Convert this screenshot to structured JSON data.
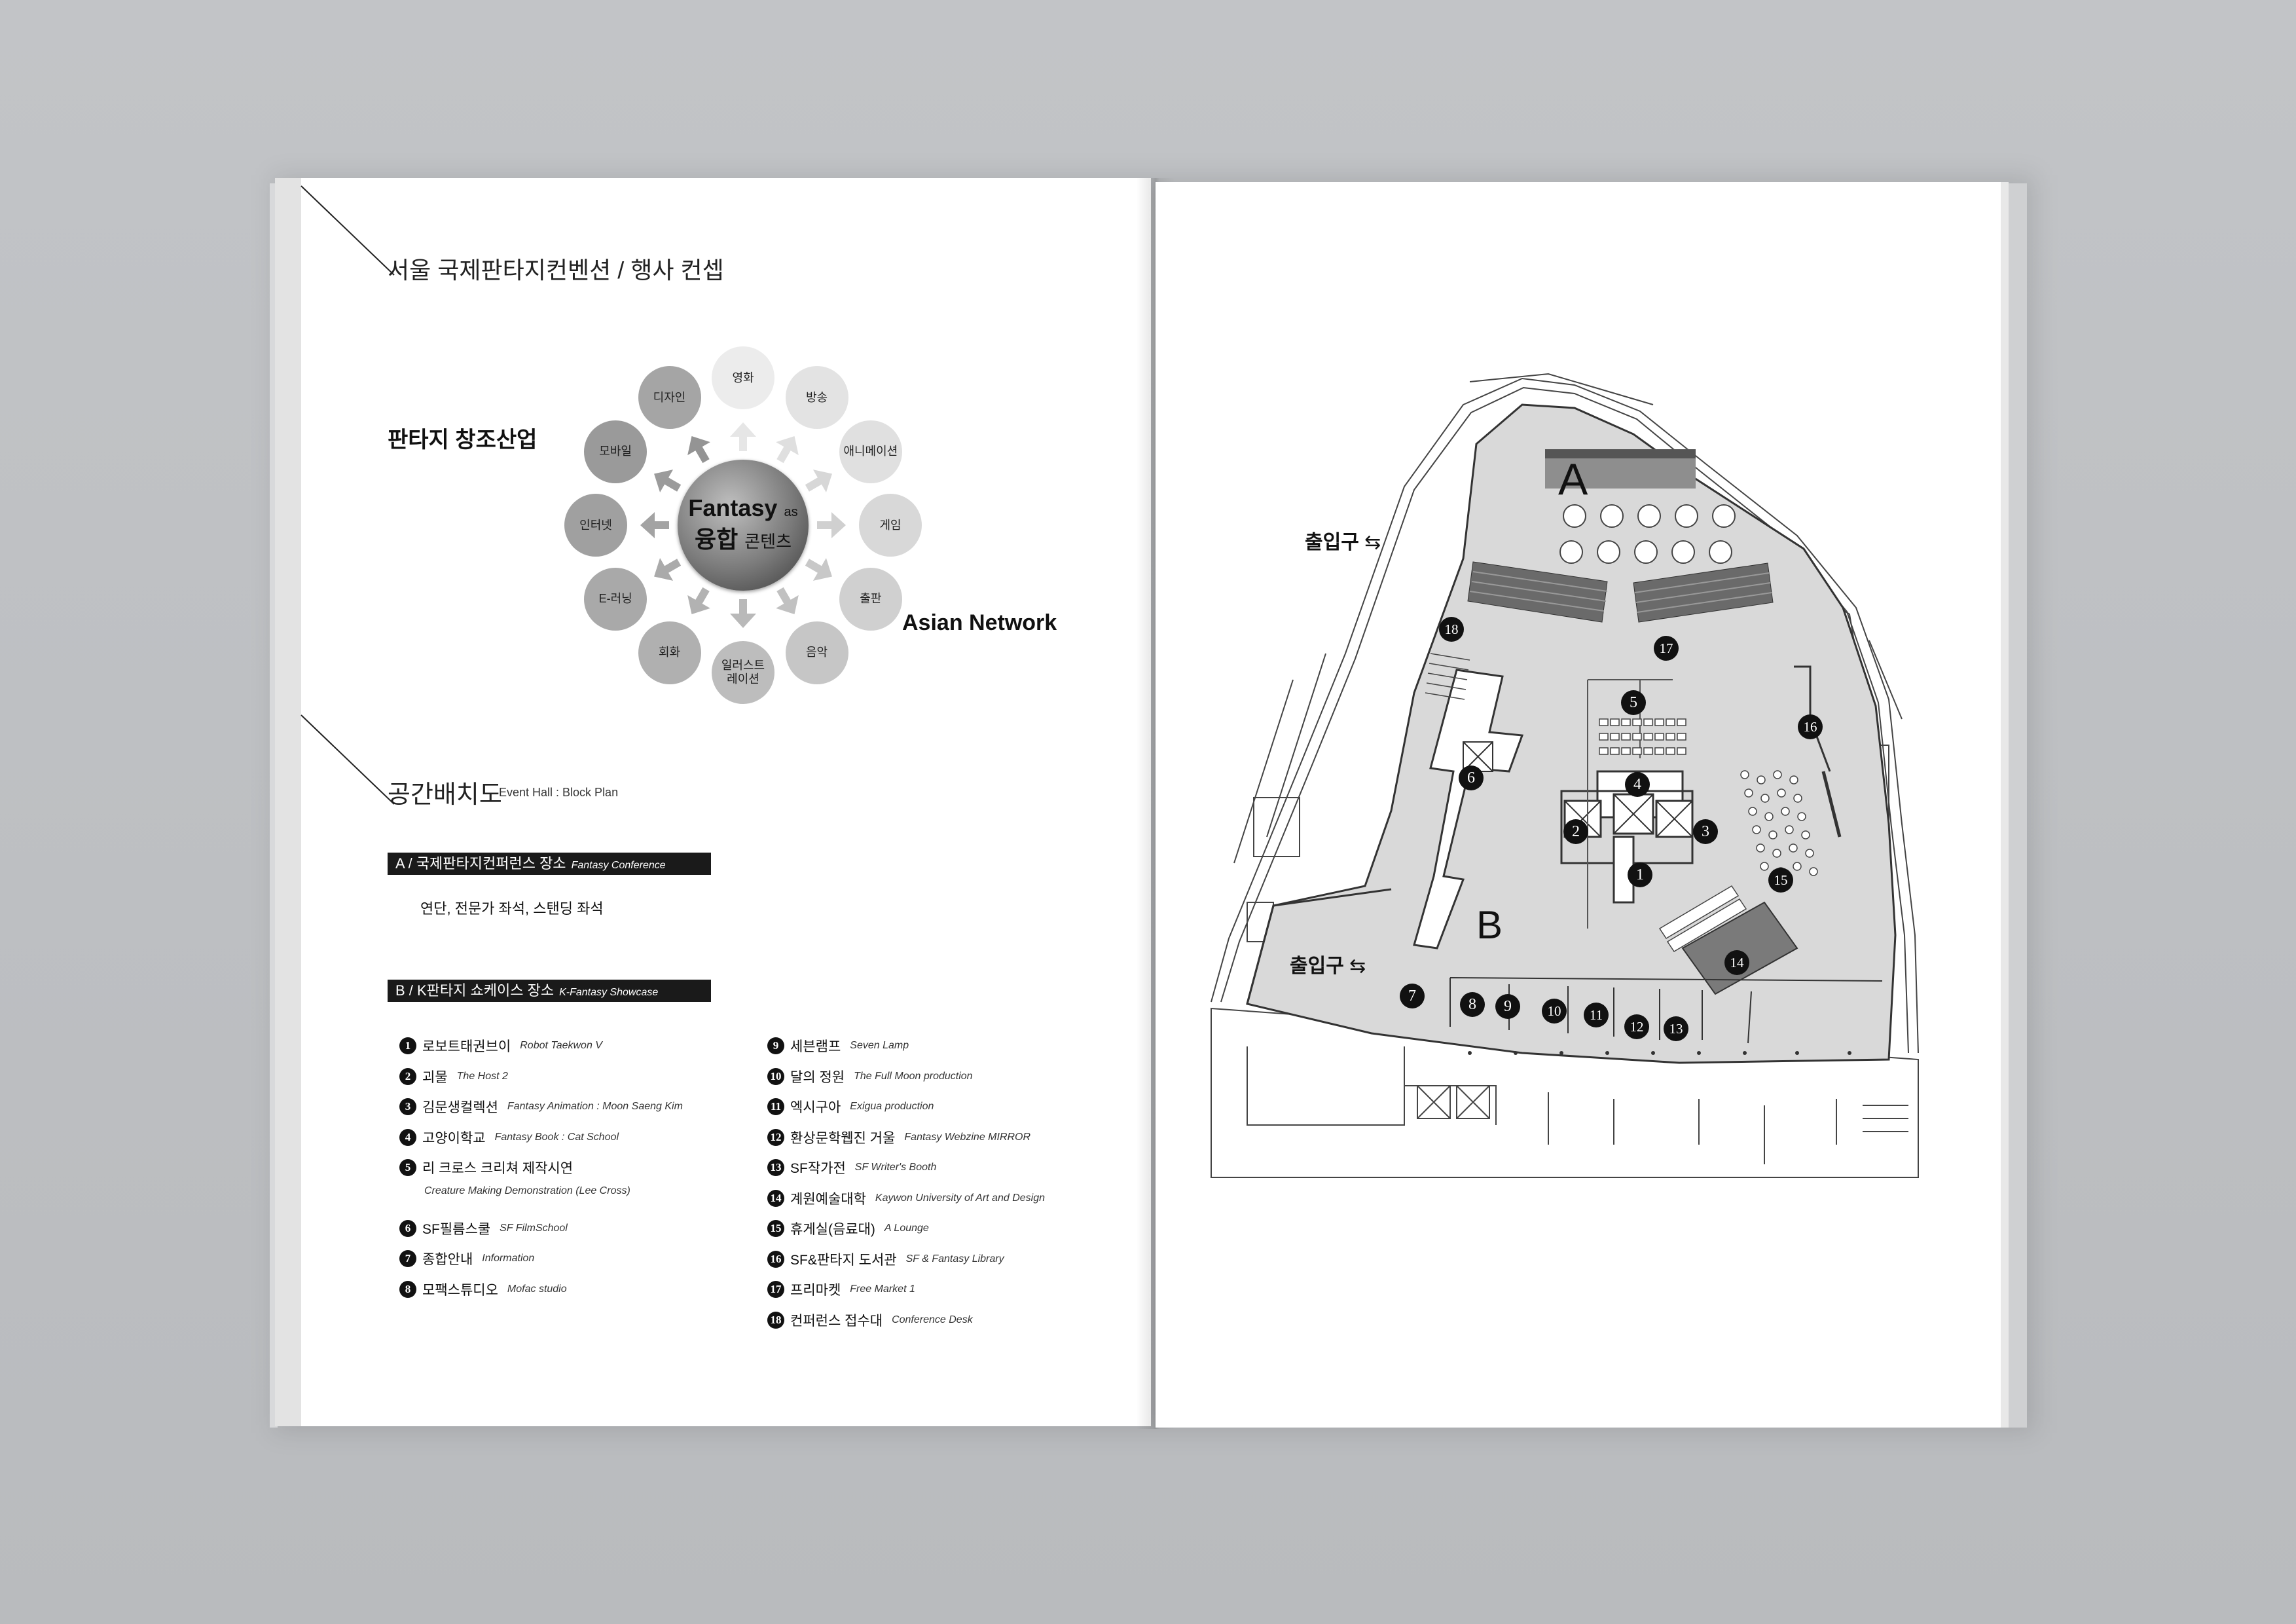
{
  "left_page": {
    "title": "서울 국제판타지컨벤션 / 행사 컨셉",
    "concept": {
      "side_title": "판타지 창조산업",
      "center_line1": "Fantasy",
      "center_as": "as",
      "center_line2": "융합",
      "center_line2_tail": "콘텐츠",
      "network_label": "Asian Network",
      "bubbles": [
        "영화",
        "방송",
        "애니메이션",
        "게임",
        "출판",
        "음악",
        "일러스트\n레이션",
        "회화",
        "E-러닝",
        "인터넷",
        "모바일",
        "디자인"
      ]
    },
    "section_title": "공간배치도",
    "section_sub": "Event Hall : Block Plan",
    "block_a": {
      "label": "A / 국제판타지컨퍼런스 장소",
      "label_en": "Fantasy Conference",
      "desc": "연단, 전문가 좌석, 스탠딩 좌석"
    },
    "block_b": {
      "label": "B / K판타지 쇼케이스 장소",
      "label_en": "K-Fantasy Showcase"
    },
    "legend_left": [
      {
        "num": "1",
        "ko": "로보트태권브이",
        "en": "Robot Taekwon V"
      },
      {
        "num": "2",
        "ko": "괴물",
        "en": "The Host 2"
      },
      {
        "num": "3",
        "ko": "김문생컬렉션",
        "en": "Fantasy Animation : Moon Saeng Kim"
      },
      {
        "num": "4",
        "ko": "고양이학교",
        "en": "Fantasy Book : Cat School"
      },
      {
        "num": "5",
        "ko": "리 크로스 크리쳐 제작시연",
        "en": ""
      },
      {
        "num": "6",
        "ko": "SF필름스쿨",
        "en": "SF FilmSchool"
      },
      {
        "num": "7",
        "ko": "종합안내",
        "en": "Information"
      },
      {
        "num": "8",
        "ko": "모팩스튜디오",
        "en": "Mofac studio"
      }
    ],
    "legend_5_sub": "Creature Making Demonstration (Lee Cross)",
    "legend_right": [
      {
        "num": "9",
        "ko": "세븐램프",
        "en": "Seven Lamp"
      },
      {
        "num": "10",
        "ko": "달의 정원",
        "en": "The Full Moon production"
      },
      {
        "num": "11",
        "ko": "엑시구아",
        "en": "Exigua production"
      },
      {
        "num": "12",
        "ko": "환상문학웹진 거울",
        "en": "Fantasy Webzine MIRROR"
      },
      {
        "num": "13",
        "ko": "SF작가전",
        "en": "SF Writer's Booth"
      },
      {
        "num": "14",
        "ko": "계원예술대학",
        "en": "Kaywon University of Art and Design"
      },
      {
        "num": "15",
        "ko": "휴게실(음료대)",
        "en": "A Lounge"
      },
      {
        "num": "16",
        "ko": "SF&판타지 도서관",
        "en": "SF & Fantasy Library"
      },
      {
        "num": "17",
        "ko": "프리마켓",
        "en": "Free Market 1"
      },
      {
        "num": "18",
        "ko": "컨퍼런스 접수대",
        "en": "Conference Desk"
      }
    ]
  },
  "right_page": {
    "zone_a": "A",
    "zone_b": "B",
    "exit_label": "출입구",
    "exit_arrow": "⇆",
    "markers": [
      "1",
      "2",
      "3",
      "4",
      "5",
      "6",
      "7",
      "8",
      "9",
      "10",
      "11",
      "12",
      "13",
      "14",
      "15",
      "16",
      "17",
      "18"
    ]
  },
  "colors": {
    "accent_dark": "#1a1a1a",
    "floor_fill": "#d9d9d9",
    "background": "#bfc1c4"
  }
}
